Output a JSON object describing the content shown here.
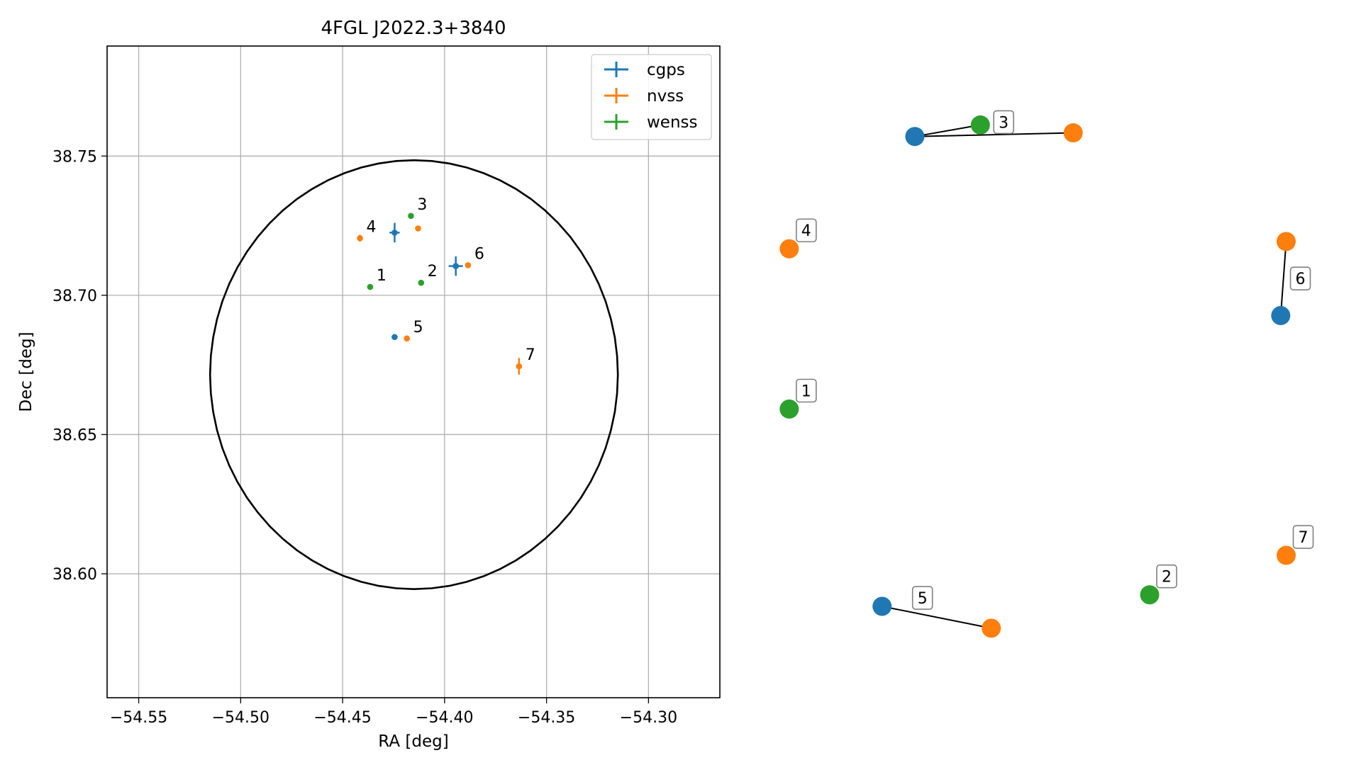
{
  "chart_data": [
    {
      "type": "scatter",
      "title": "4FGL J2022.3+3840",
      "xlabel": "RA [deg]",
      "ylabel": "Dec [deg]",
      "xlim": [
        -54.5655,
        -54.265
      ],
      "ylim": [
        38.5555,
        38.7895
      ],
      "x_ticks": [
        -54.55,
        -54.5,
        -54.45,
        -54.4,
        -54.35,
        -54.3
      ],
      "x_tick_labels": [
        "−54.55",
        "−54.50",
        "−54.45",
        "−54.40",
        "−54.35",
        "−54.30"
      ],
      "y_ticks": [
        38.6,
        38.65,
        38.7,
        38.75
      ],
      "y_tick_labels": [
        "38.60",
        "38.65",
        "38.70",
        "38.75"
      ],
      "grid": true,
      "legend_position": "top-right",
      "error_circle": {
        "center": [
          -54.415,
          38.6715
        ],
        "radius_ra": 0.1,
        "radius_dec": 0.077
      },
      "series": [
        {
          "name": "cgps",
          "color": "#1f77b4",
          "points": [
            {
              "x": -54.4245,
              "y": 38.7225,
              "xerr": 0.0025,
              "yerr": 0.0035
            },
            {
              "x": -54.3945,
              "y": 38.7105,
              "xerr": 0.0035,
              "yerr": 0.0035
            },
            {
              "x": -54.4245,
              "y": 38.685,
              "xerr": 0.0008,
              "yerr": 0.001
            }
          ]
        },
        {
          "name": "nvss",
          "color": "#ff7f0e",
          "points": [
            {
              "x": -54.4415,
              "y": 38.7205,
              "xerr": 0.001,
              "yerr": 0.0012
            },
            {
              "x": -54.413,
              "y": 38.724,
              "xerr": 0.0008,
              "yerr": 0.0008
            },
            {
              "x": -54.3885,
              "y": 38.7108,
              "xerr": 0.0008,
              "yerr": 0.0008
            },
            {
              "x": -54.4185,
              "y": 38.6845,
              "xerr": 0.0008,
              "yerr": 0.0008
            },
            {
              "x": -54.3635,
              "y": 38.6745,
              "xerr": 0.0013,
              "yerr": 0.003
            }
          ]
        },
        {
          "name": "wenss",
          "color": "#2ca02c",
          "points": [
            {
              "x": -54.4365,
              "y": 38.703,
              "xerr": 0.0005,
              "yerr": 0.0006
            },
            {
              "x": -54.4115,
              "y": 38.7045,
              "xerr": 0.0005,
              "yerr": 0.0006
            },
            {
              "x": -54.4165,
              "y": 38.7285,
              "xerr": 0.0005,
              "yerr": 0.0006
            }
          ]
        }
      ],
      "annotations": [
        {
          "text": "1",
          "x": -54.4365,
          "y": 38.703
        },
        {
          "text": "2",
          "x": -54.4115,
          "y": 38.7045
        },
        {
          "text": "3",
          "x": -54.4165,
          "y": 38.7285
        },
        {
          "text": "4",
          "x": -54.4415,
          "y": 38.7205
        },
        {
          "text": "5",
          "x": -54.4185,
          "y": 38.6845
        },
        {
          "text": "6",
          "x": -54.3885,
          "y": 38.7108
        },
        {
          "text": "7",
          "x": -54.3635,
          "y": 38.6745
        }
      ]
    },
    {
      "type": "graph",
      "axes": "off",
      "colors": {
        "cgps": "#1f77b4",
        "nvss": "#ff7f0e",
        "wenss": "#2ca02c"
      },
      "clusters": [
        {
          "label": "1",
          "nodes": [
            {
              "catalog": "wenss",
              "x": 0.04,
              "y": 0.437
            }
          ]
        },
        {
          "label": "2",
          "nodes": [
            {
              "catalog": "wenss",
              "x": 0.7,
              "y": 0.131
            }
          ]
        },
        {
          "label": "3",
          "nodes": [
            {
              "catalog": "cgps",
              "x": 0.27,
              "y": 0.886
            },
            {
              "catalog": "wenss",
              "x": 0.39,
              "y": 0.905
            },
            {
              "catalog": "nvss",
              "x": 0.56,
              "y": 0.892
            }
          ]
        },
        {
          "label": "4",
          "nodes": [
            {
              "catalog": "nvss",
              "x": 0.04,
              "y": 0.701
            }
          ]
        },
        {
          "label": "5",
          "nodes": [
            {
              "catalog": "cgps",
              "x": 0.21,
              "y": 0.112
            },
            {
              "catalog": "nvss",
              "x": 0.41,
              "y": 0.076
            }
          ]
        },
        {
          "label": "6",
          "nodes": [
            {
              "catalog": "cgps",
              "x": 0.94,
              "y": 0.591
            },
            {
              "catalog": "nvss",
              "x": 0.95,
              "y": 0.713
            }
          ]
        },
        {
          "label": "7",
          "nodes": [
            {
              "catalog": "nvss",
              "x": 0.95,
              "y": 0.196
            }
          ]
        }
      ],
      "edges": [
        {
          "cluster": "3",
          "from": "cgps",
          "to": "wenss"
        },
        {
          "cluster": "3",
          "from": "cgps",
          "to": "nvss"
        },
        {
          "cluster": "5",
          "from": "cgps",
          "to": "nvss"
        },
        {
          "cluster": "6",
          "from": "cgps",
          "to": "nvss"
        }
      ]
    }
  ]
}
